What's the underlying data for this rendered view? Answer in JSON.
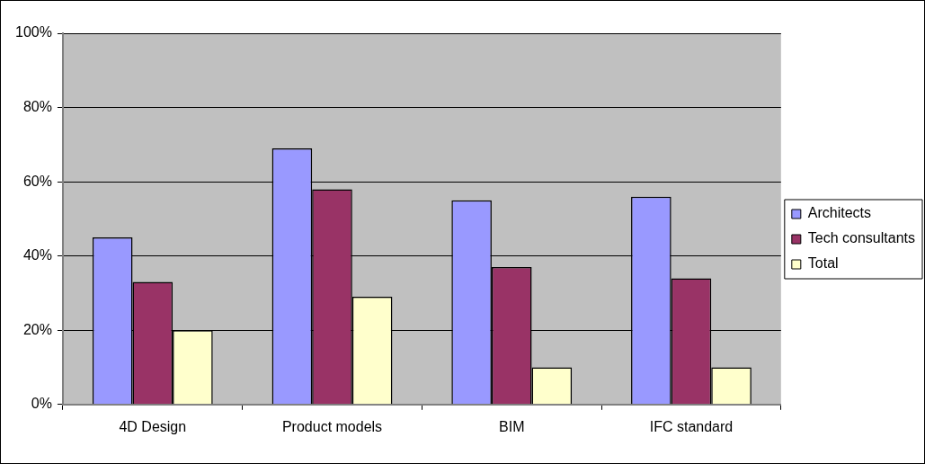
{
  "chart_data": {
    "type": "bar",
    "categories": [
      "4D Design",
      "Product models",
      "BIM",
      "IFC standard"
    ],
    "series": [
      {
        "name": "Architects",
        "color": "#9999ff",
        "values": [
          45,
          69,
          55,
          56
        ]
      },
      {
        "name": "Tech consultants",
        "color": "#993366",
        "values": [
          33,
          58,
          37,
          34
        ]
      },
      {
        "name": "Total",
        "color": "#ffffcc",
        "values": [
          20,
          29,
          10,
          10
        ]
      }
    ],
    "ylim": [
      0,
      100
    ],
    "yticks": [
      {
        "value": 0,
        "label": "0%"
      },
      {
        "value": 20,
        "label": "20%"
      },
      {
        "value": 40,
        "label": "40%"
      },
      {
        "value": 60,
        "label": "60%"
      },
      {
        "value": 80,
        "label": "80%"
      },
      {
        "value": 100,
        "label": "100%"
      }
    ],
    "grid": "y",
    "legend": "right"
  }
}
